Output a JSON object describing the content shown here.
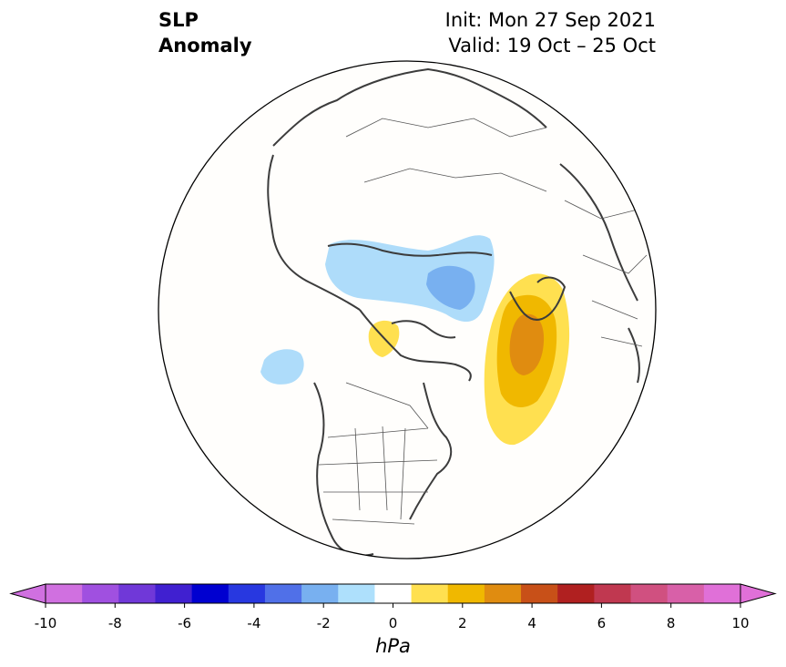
{
  "title": {
    "variable_line1": "SLP",
    "variable_line2": "Anomaly",
    "init": "Init: Mon 27 Sep 2021",
    "valid": "Valid: 19 Oct – 25 Oct"
  },
  "colorbar": {
    "unit": "hPa",
    "ticks": [
      "-10",
      "-8",
      "-6",
      "-4",
      "-2",
      "0",
      "2",
      "4",
      "6",
      "8",
      "10"
    ],
    "levels": [
      -10,
      -9,
      -8,
      -7,
      -6,
      -5,
      -4,
      -3,
      -2,
      -1,
      1,
      2,
      3,
      4,
      5,
      6,
      7,
      8,
      9,
      10
    ],
    "colors": [
      "#d070e0",
      "#a050e0",
      "#7038d8",
      "#4020d0",
      "#0000d0",
      "#2838e0",
      "#5070e8",
      "#78b0f0",
      "#aee0fc",
      "#ffffff",
      "#ffe050",
      "#f0b800",
      "#e08c10",
      "#c85018",
      "#b02020",
      "#c03850",
      "#d05080",
      "#d860a8",
      "#e070d8"
    ],
    "under_color": "#d070e0",
    "over_color": "#e070d8"
  },
  "map": {
    "projection": "north-polar-stereographic",
    "anomaly_regions": [
      {
        "name": "eurasia-arctic-low",
        "sign": "negative",
        "levels": [
          "-1",
          "-2"
        ]
      },
      {
        "name": "north-pacific-low",
        "sign": "negative",
        "levels": [
          "-1"
        ]
      },
      {
        "name": "canadian-arctic-high",
        "sign": "positive",
        "levels": [
          "1"
        ]
      },
      {
        "name": "north-atlantic-high",
        "sign": "positive",
        "levels": [
          "1",
          "2",
          "3"
        ]
      }
    ]
  }
}
